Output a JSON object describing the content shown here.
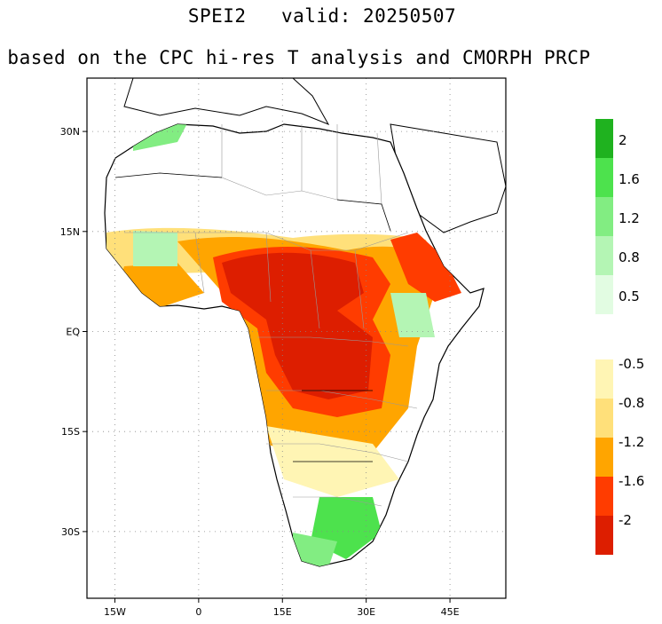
{
  "title": "SPEI2   valid: 20250507",
  "subtitle": "based on the CPC hi-res T analysis and CMORPH PRCP",
  "map": {
    "region": "Africa",
    "lon_range": [
      -20,
      55
    ],
    "lat_range": [
      -40,
      38
    ],
    "x_ticks": [
      {
        "label": "15W",
        "lon": -15
      },
      {
        "label": "0",
        "lon": 0
      },
      {
        "label": "15E",
        "lon": 15
      },
      {
        "label": "30E",
        "lon": 30
      },
      {
        "label": "45E",
        "lon": 45
      }
    ],
    "y_ticks": [
      {
        "label": "30N",
        "lat": 30
      },
      {
        "label": "15N",
        "lat": 15
      },
      {
        "label": "EQ",
        "lat": 0
      },
      {
        "label": "15S",
        "lat": -15
      },
      {
        "label": "30S",
        "lat": -30
      }
    ],
    "gridlines": "dotted"
  },
  "colorbar": {
    "wet": {
      "labels": [
        "2",
        "1.6",
        "1.2",
        "0.8",
        "0.5"
      ],
      "colors": [
        "#1fb21f",
        "#4de24d",
        "#82ed82",
        "#b4f5b4",
        "#e2fce2"
      ]
    },
    "dry": {
      "labels": [
        "-0.5",
        "-0.8",
        "-1.2",
        "-1.6",
        "-2"
      ],
      "colors": [
        "#fff5b4",
        "#ffe07a",
        "#ffa500",
        "#ff3c00",
        "#dd1e00"
      ]
    }
  },
  "colors": {
    "land": "#ffffff",
    "coast": "#000000",
    "borders": "#999999"
  }
}
